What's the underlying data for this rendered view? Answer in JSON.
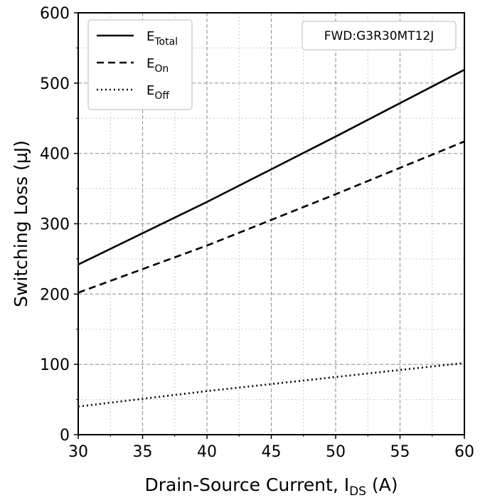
{
  "chart_data": {
    "type": "line",
    "xlabel": "Drain-Source Current, I",
    "xlabel_sub": "DS",
    "xlabel_unit": " (A)",
    "ylabel": "Switching Loss (µJ)",
    "xlim": [
      30,
      60
    ],
    "ylim": [
      0,
      600
    ],
    "xticks": [
      "30",
      "35",
      "40",
      "45",
      "50",
      "55",
      "60"
    ],
    "yticks": [
      "0",
      "100",
      "200",
      "300",
      "400",
      "500",
      "600"
    ],
    "grid": true,
    "legend_position": "top-left",
    "annotation": "FWD:G3R30MT12J",
    "series": [
      {
        "name": "E",
        "name_sub": "Total",
        "style": "solid",
        "x": [
          30,
          40,
          50,
          60
        ],
        "y": [
          242,
          331,
          424,
          519
        ]
      },
      {
        "name": "E",
        "name_sub": "On",
        "style": "dashed",
        "x": [
          30,
          40,
          50,
          60
        ],
        "y": [
          202,
          269,
          342,
          417
        ]
      },
      {
        "name": "E",
        "name_sub": "Off",
        "style": "dotted",
        "x": [
          30,
          40,
          50,
          60
        ],
        "y": [
          40,
          62,
          82,
          102
        ]
      }
    ]
  }
}
